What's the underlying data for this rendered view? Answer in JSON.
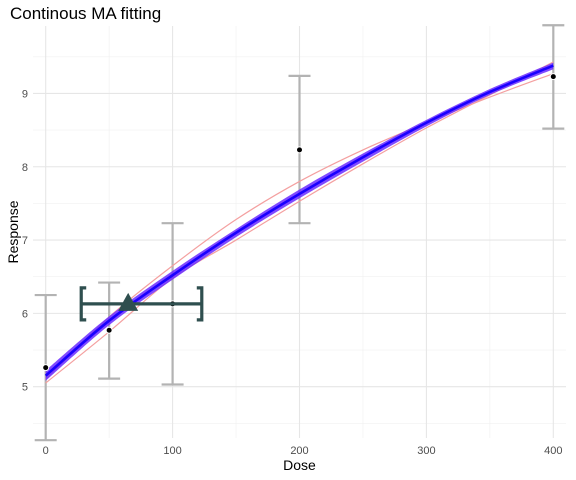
{
  "chart_data": {
    "type": "line",
    "title": "Continous MA fitting",
    "xlabel": "Dose",
    "ylabel": "Response",
    "xlim": [
      -10,
      410
    ],
    "ylim": [
      4.3,
      9.92
    ],
    "x_ticks": [
      0,
      100,
      200,
      300,
      400
    ],
    "y_ticks": [
      5,
      6,
      7,
      8,
      9
    ],
    "grid": true,
    "legend": "none",
    "observations": [
      {
        "x": 0,
        "y": 5.26,
        "lower": 4.27,
        "upper": 6.25
      },
      {
        "x": 50,
        "y": 5.77,
        "lower": 5.11,
        "upper": 6.42
      },
      {
        "x": 100,
        "y": 6.13,
        "lower": 5.03,
        "upper": 7.23
      },
      {
        "x": 200,
        "y": 8.23,
        "lower": 7.23,
        "upper": 9.24
      },
      {
        "x": 400,
        "y": 9.23,
        "lower": 8.52,
        "upper": 9.93
      }
    ],
    "series": [
      {
        "role": "model-average-fit",
        "color": "#1a00ff",
        "x": [
          0,
          50,
          100,
          150,
          200,
          250,
          300,
          350,
          400
        ],
        "y": [
          5.15,
          5.9,
          6.52,
          7.1,
          7.63,
          8.13,
          8.6,
          9.02,
          9.38
        ]
      },
      {
        "role": "credible-band-upper",
        "color": "#6a2cff",
        "x": [
          0,
          50,
          100,
          150,
          200,
          250,
          300,
          350,
          400
        ],
        "y": [
          5.22,
          5.96,
          6.58,
          7.15,
          7.69,
          8.18,
          8.64,
          9.06,
          9.42
        ]
      },
      {
        "role": "credible-band-lower",
        "color": "#6a2cff",
        "x": [
          0,
          50,
          100,
          150,
          200,
          250,
          300,
          350,
          400
        ],
        "y": [
          5.08,
          5.84,
          6.46,
          7.04,
          7.57,
          8.07,
          8.55,
          8.98,
          9.33
        ]
      },
      {
        "role": "component-model-1",
        "color": "#f4a0a0",
        "x": [
          0,
          50,
          100,
          150,
          200,
          250,
          300,
          350,
          400
        ],
        "y": [
          5.1,
          5.95,
          6.65,
          7.28,
          7.8,
          8.23,
          8.6,
          8.95,
          9.27
        ]
      },
      {
        "role": "component-model-2",
        "color": "#f4a0a0",
        "x": [
          0,
          50,
          100,
          150,
          200,
          250,
          300,
          350,
          400
        ],
        "y": [
          5.05,
          5.75,
          6.48,
          7.0,
          7.53,
          8.04,
          8.53,
          8.98,
          9.43
        ]
      }
    ],
    "bmd_marker": {
      "x": 65,
      "y": 6.13,
      "lower": 28,
      "upper": 123,
      "color": "#2f4f4f"
    }
  }
}
